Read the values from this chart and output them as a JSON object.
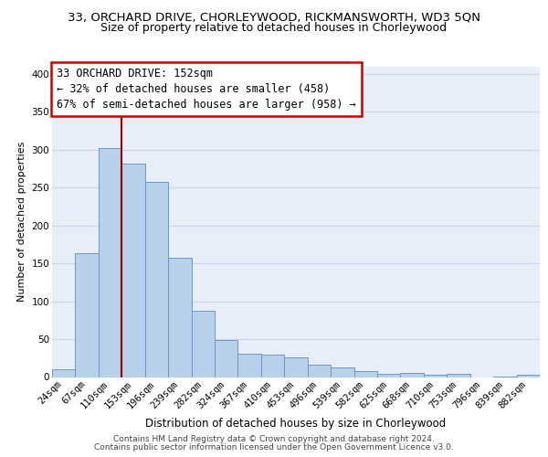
{
  "title": "33, ORCHARD DRIVE, CHORLEYWOOD, RICKMANSWORTH, WD3 5QN",
  "subtitle": "Size of property relative to detached houses in Chorleywood",
  "xlabel": "Distribution of detached houses by size in Chorleywood",
  "ylabel": "Number of detached properties",
  "bar_labels": [
    "24sqm",
    "67sqm",
    "110sqm",
    "153sqm",
    "196sqm",
    "239sqm",
    "282sqm",
    "324sqm",
    "367sqm",
    "410sqm",
    "453sqm",
    "496sqm",
    "539sqm",
    "582sqm",
    "625sqm",
    "668sqm",
    "710sqm",
    "753sqm",
    "796sqm",
    "839sqm",
    "882sqm"
  ],
  "bar_values": [
    10,
    163,
    302,
    281,
    258,
    157,
    88,
    49,
    31,
    30,
    26,
    16,
    13,
    8,
    4,
    5,
    3,
    4,
    0,
    1,
    3
  ],
  "bar_color": "#b8d0ea",
  "bar_edge_color": "#6699cc",
  "vline_color": "#990000",
  "annotation_lines": [
    "33 ORCHARD DRIVE: 152sqm",
    "← 32% of detached houses are smaller (458)",
    "67% of semi-detached houses are larger (958) →"
  ],
  "annotation_box_facecolor": "#ffffff",
  "annotation_box_edgecolor": "#cc0000",
  "ylim": [
    0,
    410
  ],
  "yticks": [
    0,
    50,
    100,
    150,
    200,
    250,
    300,
    350,
    400
  ],
  "grid_color": "#c8d4e8",
  "bg_color": "#e8eef8",
  "footer_line1": "Contains HM Land Registry data © Crown copyright and database right 2024.",
  "footer_line2": "Contains public sector information licensed under the Open Government Licence v3.0.",
  "title_fontsize": 9.5,
  "subtitle_fontsize": 9,
  "xlabel_fontsize": 8.5,
  "ylabel_fontsize": 8,
  "tick_fontsize": 7.5,
  "annotation_fontsize": 8.5,
  "footer_fontsize": 6.5
}
